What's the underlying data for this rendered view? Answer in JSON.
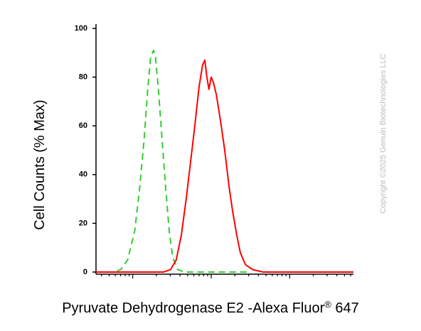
{
  "chart_data": {
    "type": "line",
    "xlabel": {
      "text": "Pyruvate Dehydrogenase E2 -Alexa Fluor",
      "sup": "®",
      "suffix": " 647"
    },
    "ylabel": "Cell Counts (% Max)",
    "watermark": "Copyright ©2025 Genuin Biotechnologies LLC",
    "xscale": "log",
    "xlim": [
      34,
      65000
    ],
    "xticks": [
      40,
      50,
      60,
      70,
      80,
      90,
      100,
      200,
      300,
      400,
      500,
      600,
      700,
      800,
      900,
      1000,
      2000,
      3000,
      4000,
      5000,
      6000,
      7000,
      8000,
      9000,
      10000,
      20000,
      30000,
      40000,
      50000,
      60000
    ],
    "ylim": [
      0,
      100
    ],
    "yticks": [
      0,
      20,
      40,
      60,
      80,
      100
    ],
    "series": [
      {
        "color": "#33cc33",
        "dash": true,
        "x": [
          34,
          57,
          70,
          86,
          106,
          123,
          140,
          155,
          169,
          184,
          195,
          212,
          236,
          262,
          291,
          323,
          374,
          460,
          1063,
          3030
        ],
        "values": [
          0,
          0,
          1,
          5,
          17,
          35,
          55,
          75,
          88,
          91,
          88,
          75,
          55,
          35,
          17,
          6,
          1,
          0,
          0,
          0
        ]
      },
      {
        "color": "#ff0000",
        "dash": false,
        "x": [
          34,
          246,
          303,
          358,
          415,
          480,
          545,
          617,
          700,
          777,
          829,
          881,
          936,
          1000,
          1063,
          1159,
          1313,
          1488,
          1688,
          1874,
          2120,
          2350,
          2733,
          3376,
          4600,
          65000
        ],
        "values": [
          0,
          0,
          1,
          5,
          15,
          30,
          45,
          60,
          76,
          85,
          87,
          80,
          75,
          80,
          78,
          73,
          62,
          50,
          35,
          25,
          15,
          8,
          3,
          1,
          0,
          0
        ]
      }
    ]
  }
}
